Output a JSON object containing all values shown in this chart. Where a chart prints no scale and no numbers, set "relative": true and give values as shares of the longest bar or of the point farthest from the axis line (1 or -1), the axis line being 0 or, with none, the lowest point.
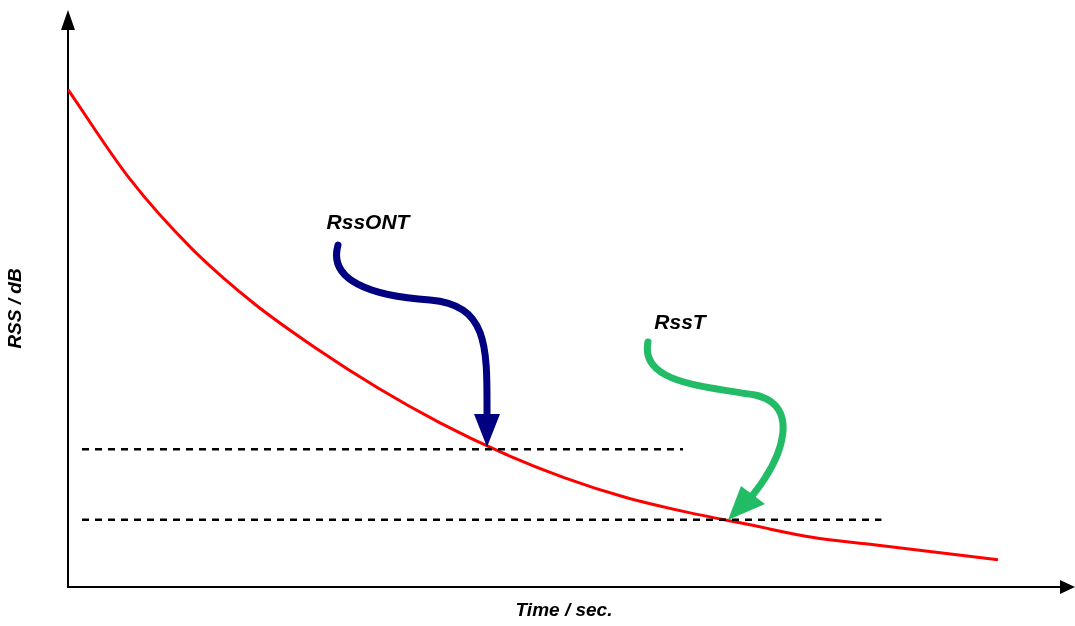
{
  "chart_data": {
    "type": "line",
    "relative": true,
    "xlabel": "Time / sec.",
    "ylabel": "RSS / dB",
    "categories": [
      null,
      null,
      null,
      null,
      null,
      null,
      null,
      null,
      null,
      null,
      null,
      null,
      null,
      null,
      null,
      null
    ],
    "series": [
      {
        "color": "#ff0000",
        "values": [
          1,
          0.82,
          0.68,
          0.57,
          0.48,
          0.4,
          0.33,
          0.27,
          0.22,
          0.18,
          0.15,
          0.125,
          0.1,
          0.085,
          0.07,
          0.055
        ]
      }
    ],
    "ref_lines": [
      {
        "axis": "y",
        "value": 0.277,
        "color": "#000000",
        "line_style": "dashed"
      },
      {
        "axis": "y",
        "value": 0.135,
        "color": "#000000",
        "line_style": "dashed"
      }
    ],
    "annotations": [
      "RssONT",
      "RssT"
    ],
    "grid": false,
    "legend": false,
    "marker": "none",
    "line_style": "solid"
  }
}
